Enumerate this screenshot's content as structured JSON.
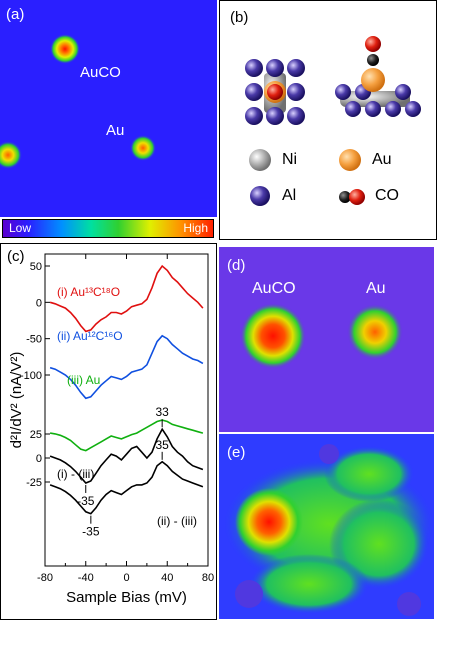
{
  "panels": {
    "a": {
      "label": "(a)",
      "markers": [
        {
          "text": "AuCO"
        },
        {
          "text": "Au"
        }
      ]
    },
    "b": {
      "label": "(b)",
      "legend": [
        {
          "text": "Ni",
          "icon": "ni-atom-icon"
        },
        {
          "text": "Au",
          "icon": "au-atom-icon"
        },
        {
          "text": "Al",
          "icon": "al-atom-icon"
        },
        {
          "text": "CO",
          "icon": "co-molecule-icon"
        }
      ]
    },
    "colorbar": {
      "low": "Low",
      "high": "High"
    },
    "c": {
      "label": "(c)"
    },
    "d": {
      "label": "(d)",
      "markers": [
        {
          "text": "AuCO"
        },
        {
          "text": "Au"
        }
      ]
    },
    "e": {
      "label": "(e)"
    }
  },
  "chart_data": {
    "type": "line",
    "xlabel": "Sample Bias (mV)",
    "ylabel": "d²I/dV² (nA/V²)",
    "xlim": [
      -80,
      80
    ],
    "xticks": [
      -80,
      -40,
      0,
      40,
      80
    ],
    "yticks_top": [
      50,
      0,
      -50,
      -100
    ],
    "yticks_bottom": [
      25,
      0,
      -25
    ],
    "series": [
      {
        "name": "(i) Au¹³C¹⁸O",
        "color": "#e01010",
        "x": [
          -75,
          -70,
          -65,
          -60,
          -55,
          -50,
          -45,
          -40,
          -35,
          -30,
          -25,
          -20,
          -15,
          -10,
          -5,
          0,
          5,
          10,
          15,
          20,
          25,
          30,
          35,
          40,
          45,
          50,
          55,
          60,
          65,
          70,
          75
        ],
        "y": [
          0,
          -2,
          -5,
          -8,
          -14,
          -22,
          -32,
          -40,
          -38,
          -30,
          -24,
          -20,
          -14,
          -14,
          -16,
          -12,
          -6,
          -4,
          -2,
          4,
          20,
          40,
          50,
          44,
          34,
          28,
          20,
          12,
          6,
          0,
          -8
        ]
      },
      {
        "name": "(ii) Au¹²C¹⁶O",
        "color": "#1050e0",
        "x": [
          -75,
          -70,
          -65,
          -60,
          -55,
          -50,
          -45,
          -40,
          -35,
          -30,
          -25,
          -20,
          -15,
          -10,
          -5,
          0,
          5,
          10,
          15,
          20,
          25,
          30,
          35,
          40,
          45,
          50,
          55,
          60,
          65,
          70,
          75
        ],
        "y": [
          -90,
          -92,
          -96,
          -100,
          -106,
          -114,
          -124,
          -132,
          -130,
          -122,
          -114,
          -108,
          -102,
          -104,
          -106,
          -102,
          -96,
          -94,
          -92,
          -86,
          -70,
          -54,
          -46,
          -50,
          -58,
          -64,
          -70,
          -74,
          -78,
          -80,
          -84
        ]
      },
      {
        "name": "(iii) Au",
        "color": "#10b010",
        "x": [
          -75,
          -70,
          -65,
          -60,
          -55,
          -50,
          -45,
          -40,
          -35,
          -30,
          -25,
          -20,
          -15,
          -10,
          -5,
          0,
          5,
          10,
          15,
          20,
          25,
          30,
          35,
          40,
          45,
          50,
          55,
          60,
          65,
          70,
          75
        ],
        "y": [
          -180,
          -181,
          -183,
          -186,
          -190,
          -196,
          -202,
          -204,
          -200,
          -196,
          -192,
          -188,
          -184,
          -186,
          -188,
          -185,
          -182,
          -180,
          -176,
          -172,
          -168,
          -164,
          -162,
          -164,
          -168,
          -170,
          -172,
          -174,
          -176,
          -178,
          -180
        ]
      },
      {
        "name": "(i) - (iii)",
        "color": "#000000",
        "peak_label": "33",
        "dip_label": "-35",
        "x": [
          -75,
          -70,
          -65,
          -60,
          -55,
          -50,
          -45,
          -40,
          -35,
          -30,
          -25,
          -20,
          -15,
          -10,
          -5,
          0,
          5,
          10,
          15,
          20,
          25,
          30,
          35,
          40,
          45,
          50,
          55,
          60,
          65,
          70,
          75
        ],
        "y": [
          2,
          0,
          -2,
          -5,
          -9,
          -14,
          -20,
          -26,
          -24,
          -16,
          -8,
          -2,
          4,
          2,
          -2,
          4,
          10,
          12,
          6,
          0,
          6,
          20,
          30,
          22,
          12,
          6,
          2,
          -4,
          -8,
          -10,
          -12
        ]
      },
      {
        "name": "(ii) - (iii)",
        "color": "#000000",
        "peak_label": "35",
        "dip_label": "-35",
        "x": [
          -75,
          -70,
          -65,
          -60,
          -55,
          -50,
          -45,
          -40,
          -35,
          -30,
          -25,
          -20,
          -15,
          -10,
          -5,
          0,
          5,
          10,
          15,
          20,
          25,
          30,
          35,
          40,
          45,
          50,
          55,
          60,
          65,
          70,
          75
        ],
        "y": [
          -28,
          -30,
          -32,
          -35,
          -39,
          -44,
          -50,
          -56,
          -58,
          -52,
          -44,
          -38,
          -34,
          -36,
          -38,
          -34,
          -30,
          -28,
          -28,
          -26,
          -20,
          -8,
          -4,
          -8,
          -14,
          -18,
          -22,
          -24,
          -26,
          -28,
          -30
        ]
      }
    ]
  },
  "colors": {
    "ls_bg": "#2a1fff",
    "accent_red": "#e01010",
    "accent_blue": "#1050e0",
    "accent_green": "#10b010"
  }
}
